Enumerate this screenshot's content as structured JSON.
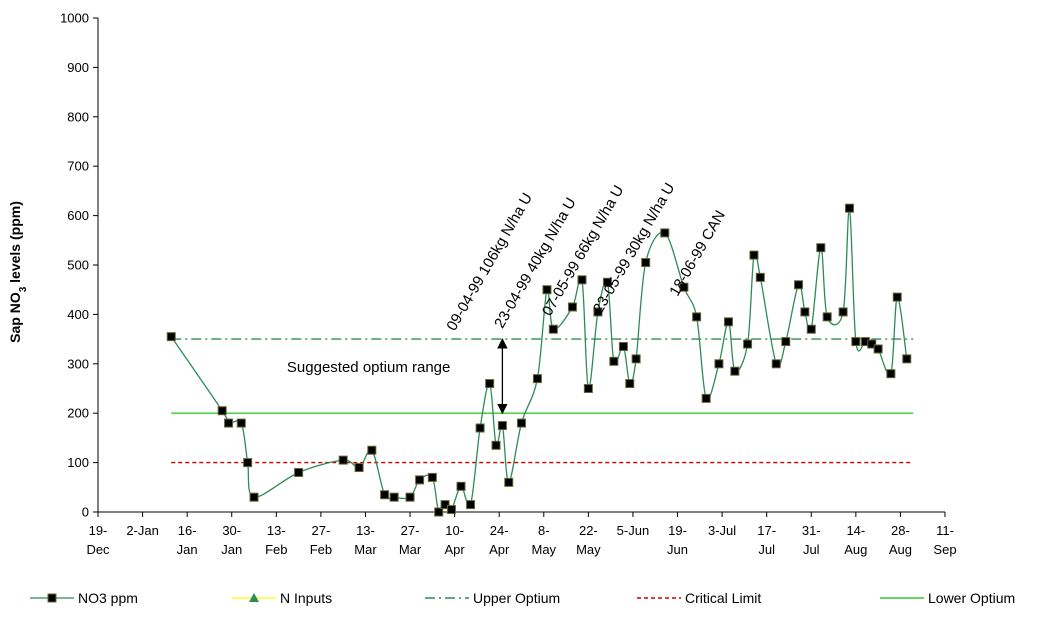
{
  "chart_data": {
    "type": "line",
    "title": "",
    "xlabel": "",
    "ylabel": "Sap NO3 levels (ppm)",
    "ylabel_main": "Sap NO",
    "ylabel_sub": "3",
    "ylabel_tail": " levels (ppm)",
    "ylim": [
      0,
      1000
    ],
    "xlim": [
      "1998-12-19",
      "1999-09-11"
    ],
    "yticks": [
      "0",
      "100",
      "200",
      "300",
      "400",
      "500",
      "600",
      "700",
      "800",
      "900",
      "1000"
    ],
    "xticks": [
      {
        "date": "1998-12-19",
        "line1": "19-",
        "line2": "Dec"
      },
      {
        "date": "1999-01-02",
        "line1": "2-Jan",
        "line2": ""
      },
      {
        "date": "1999-01-16",
        "line1": "16-",
        "line2": "Jan"
      },
      {
        "date": "1999-01-30",
        "line1": "30-",
        "line2": "Jan"
      },
      {
        "date": "1999-02-13",
        "line1": "13-",
        "line2": "Feb"
      },
      {
        "date": "1999-02-27",
        "line1": "27-",
        "line2": "Feb"
      },
      {
        "date": "1999-03-13",
        "line1": "13-",
        "line2": "Mar"
      },
      {
        "date": "1999-03-27",
        "line1": "27-",
        "line2": "Mar"
      },
      {
        "date": "1999-04-10",
        "line1": "10-",
        "line2": "Apr"
      },
      {
        "date": "1999-04-24",
        "line1": "24-",
        "line2": "Apr"
      },
      {
        "date": "1999-05-08",
        "line1": "8-",
        "line2": "May"
      },
      {
        "date": "1999-05-22",
        "line1": "22-",
        "line2": "May"
      },
      {
        "date": "1999-06-05",
        "line1": "5-Jun",
        "line2": ""
      },
      {
        "date": "1999-06-19",
        "line1": "19-",
        "line2": "Jun"
      },
      {
        "date": "1999-07-03",
        "line1": "3-Jul",
        "line2": ""
      },
      {
        "date": "1999-07-17",
        "line1": "17-",
        "line2": "Jul"
      },
      {
        "date": "1999-07-31",
        "line1": "31-",
        "line2": "Jul"
      },
      {
        "date": "1999-08-14",
        "line1": "14-",
        "line2": "Aug"
      },
      {
        "date": "1999-08-28",
        "line1": "28-",
        "line2": "Aug"
      },
      {
        "date": "1999-09-11",
        "line1": "11-",
        "line2": "Sep"
      }
    ],
    "grid": false,
    "legend_position": "bottom",
    "series": [
      {
        "name": "NO3 ppm",
        "color": "#2e8b57",
        "marker": "square",
        "points": [
          [
            "1999-01-11",
            355
          ],
          [
            "1999-01-27",
            205
          ],
          [
            "1999-01-29",
            180
          ],
          [
            "1999-02-02",
            180
          ],
          [
            "1999-02-04",
            100
          ],
          [
            "1999-02-06",
            30
          ],
          [
            "1999-02-20",
            80
          ],
          [
            "1999-03-06",
            105
          ],
          [
            "1999-03-11",
            90
          ],
          [
            "1999-03-15",
            125
          ],
          [
            "1999-03-19",
            35
          ],
          [
            "1999-03-22",
            30
          ],
          [
            "1999-03-27",
            30
          ],
          [
            "1999-03-30",
            65
          ],
          [
            "1999-04-03",
            70
          ],
          [
            "1999-04-05",
            0
          ],
          [
            "1999-04-07",
            15
          ],
          [
            "1999-04-09",
            5
          ],
          [
            "1999-04-12",
            52
          ],
          [
            "1999-04-15",
            15
          ],
          [
            "1999-04-18",
            170
          ],
          [
            "1999-04-21",
            260
          ],
          [
            "1999-04-23",
            135
          ],
          [
            "1999-04-25",
            175
          ],
          [
            "1999-04-27",
            60
          ],
          [
            "1999-05-01",
            180
          ],
          [
            "1999-05-06",
            270
          ],
          [
            "1999-05-09",
            450
          ],
          [
            "1999-05-11",
            370
          ],
          [
            "1999-05-17",
            415
          ],
          [
            "1999-05-20",
            470
          ],
          [
            "1999-05-22",
            250
          ],
          [
            "1999-05-25",
            405
          ],
          [
            "1999-05-28",
            465
          ],
          [
            "1999-05-30",
            305
          ],
          [
            "1999-06-02",
            335
          ],
          [
            "1999-06-04",
            260
          ],
          [
            "1999-06-06",
            310
          ],
          [
            "1999-06-09",
            505
          ],
          [
            "1999-06-15",
            565
          ],
          [
            "1999-06-21",
            455
          ],
          [
            "1999-06-25",
            395
          ],
          [
            "1999-06-28",
            230
          ],
          [
            "1999-07-02",
            300
          ],
          [
            "1999-07-05",
            385
          ],
          [
            "1999-07-07",
            285
          ],
          [
            "1999-07-11",
            340
          ],
          [
            "1999-07-13",
            520
          ],
          [
            "1999-07-15",
            475
          ],
          [
            "1999-07-20",
            300
          ],
          [
            "1999-07-23",
            345
          ],
          [
            "1999-07-27",
            460
          ],
          [
            "1999-07-29",
            405
          ],
          [
            "1999-07-31",
            370
          ],
          [
            "1999-08-03",
            535
          ],
          [
            "1999-08-05",
            395
          ],
          [
            "1999-08-10",
            405
          ],
          [
            "1999-08-12",
            615
          ],
          [
            "1999-08-14",
            345
          ],
          [
            "1999-08-17",
            345
          ],
          [
            "1999-08-19",
            340
          ],
          [
            "1999-08-21",
            330
          ],
          [
            "1999-08-25",
            280
          ],
          [
            "1999-08-27",
            435
          ],
          [
            "1999-08-30",
            310
          ]
        ]
      },
      {
        "name": "N Inputs",
        "color": "#ffff00",
        "marker_color": "#2e8b57",
        "marker": "triangle",
        "points": []
      },
      {
        "name": "Upper Optium",
        "color": "#2e8b57",
        "style": "dashdot",
        "points": [
          [
            "1999-01-11",
            350
          ],
          [
            "1999-09-01",
            350
          ]
        ]
      },
      {
        "name": "Critical Limit",
        "color": "#cc0000",
        "style": "dotted",
        "points": [
          [
            "1999-01-11",
            100
          ],
          [
            "1999-09-01",
            100
          ]
        ]
      },
      {
        "name": "Lower Optium",
        "color": "#33cc33",
        "style": "solid",
        "points": [
          [
            "1999-01-11",
            200
          ],
          [
            "1999-09-01",
            200
          ]
        ]
      }
    ],
    "annotations": [
      {
        "text": "09-04-99 106kg N/ha  U",
        "date": "1999-04-10",
        "y": 365,
        "rotate": -60
      },
      {
        "text": "23-04-99 40kg N/ha U",
        "date": "1999-04-25",
        "y": 370,
        "rotate": -60
      },
      {
        "text": "07-05-99 66kg N/ha U",
        "date": "1999-05-10",
        "y": 395,
        "rotate": -60
      },
      {
        "text": "23-05-99 30kg N/ha U",
        "date": "1999-05-26",
        "y": 400,
        "rotate": -60
      },
      {
        "text": "18-06-99  CAN",
        "date": "1999-06-19",
        "y": 435,
        "rotate": -60
      }
    ],
    "range_annotation": {
      "text": "Suggested optium range",
      "label_date": "1999-03-14",
      "label_y": 283,
      "arrow_date": "1999-04-25",
      "y_from": 200,
      "y_to": 350
    }
  }
}
